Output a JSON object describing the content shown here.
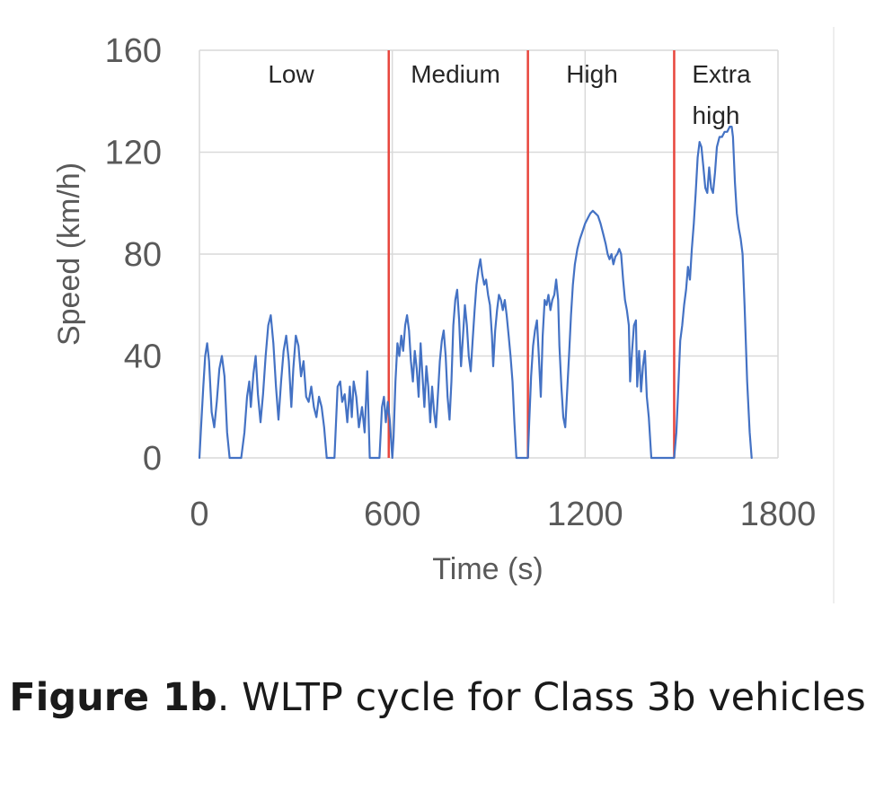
{
  "chart_data": {
    "type": "line",
    "title": "",
    "xlabel": "Time (s)",
    "ylabel": "Speed (km/h)",
    "xlim": [
      0,
      1800
    ],
    "ylim": [
      0,
      160
    ],
    "x_ticks": [
      "0",
      "600",
      "1200",
      "1800"
    ],
    "y_ticks": [
      "0",
      "40",
      "80",
      "120",
      "160"
    ],
    "grid": true,
    "colors": {
      "series": "#4472c4",
      "phase_divider": "#e8453c",
      "grid": "#d9d9d9"
    },
    "phase_boundaries": [
      589,
      1022,
      1477
    ],
    "phases": [
      "Low",
      "Medium",
      "High",
      "Extra",
      "high"
    ],
    "series": [
      {
        "name": "Speed",
        "points": [
          [
            0,
            0
          ],
          [
            5,
            12
          ],
          [
            12,
            28
          ],
          [
            18,
            40
          ],
          [
            24,
            45
          ],
          [
            30,
            38
          ],
          [
            38,
            18
          ],
          [
            46,
            12
          ],
          [
            54,
            22
          ],
          [
            62,
            35
          ],
          [
            70,
            40
          ],
          [
            78,
            32
          ],
          [
            86,
            10
          ],
          [
            94,
            0
          ],
          [
            130,
            0
          ],
          [
            140,
            10
          ],
          [
            148,
            24
          ],
          [
            155,
            30
          ],
          [
            160,
            20
          ],
          [
            168,
            33
          ],
          [
            175,
            40
          ],
          [
            182,
            25
          ],
          [
            190,
            14
          ],
          [
            198,
            25
          ],
          [
            206,
            40
          ],
          [
            214,
            52
          ],
          [
            222,
            56
          ],
          [
            230,
            45
          ],
          [
            238,
            28
          ],
          [
            246,
            15
          ],
          [
            254,
            30
          ],
          [
            262,
            42
          ],
          [
            270,
            48
          ],
          [
            278,
            38
          ],
          [
            286,
            20
          ],
          [
            292,
            35
          ],
          [
            300,
            48
          ],
          [
            308,
            44
          ],
          [
            316,
            32
          ],
          [
            324,
            38
          ],
          [
            332,
            24
          ],
          [
            340,
            22
          ],
          [
            348,
            28
          ],
          [
            356,
            20
          ],
          [
            364,
            16
          ],
          [
            372,
            24
          ],
          [
            380,
            20
          ],
          [
            388,
            12
          ],
          [
            396,
            0
          ],
          [
            420,
            0
          ],
          [
            430,
            28
          ],
          [
            438,
            30
          ],
          [
            444,
            22
          ],
          [
            452,
            25
          ],
          [
            460,
            14
          ],
          [
            468,
            28
          ],
          [
            474,
            16
          ],
          [
            480,
            30
          ],
          [
            488,
            24
          ],
          [
            496,
            12
          ],
          [
            506,
            20
          ],
          [
            514,
            10
          ],
          [
            522,
            34
          ],
          [
            530,
            0
          ],
          [
            560,
            0
          ],
          [
            568,
            20
          ],
          [
            574,
            24
          ],
          [
            580,
            14
          ],
          [
            586,
            22
          ],
          [
            592,
            15
          ],
          [
            600,
            0
          ],
          [
            604,
            8
          ],
          [
            610,
            30
          ],
          [
            616,
            45
          ],
          [
            622,
            40
          ],
          [
            628,
            48
          ],
          [
            634,
            42
          ],
          [
            640,
            52
          ],
          [
            646,
            56
          ],
          [
            652,
            50
          ],
          [
            658,
            38
          ],
          [
            664,
            30
          ],
          [
            670,
            42
          ],
          [
            676,
            35
          ],
          [
            682,
            24
          ],
          [
            688,
            45
          ],
          [
            694,
            32
          ],
          [
            700,
            20
          ],
          [
            706,
            36
          ],
          [
            712,
            28
          ],
          [
            718,
            14
          ],
          [
            724,
            28
          ],
          [
            730,
            18
          ],
          [
            736,
            12
          ],
          [
            742,
            25
          ],
          [
            748,
            38
          ],
          [
            754,
            46
          ],
          [
            760,
            50
          ],
          [
            766,
            40
          ],
          [
            772,
            24
          ],
          [
            778,
            15
          ],
          [
            784,
            30
          ],
          [
            790,
            52
          ],
          [
            796,
            62
          ],
          [
            802,
            66
          ],
          [
            808,
            54
          ],
          [
            814,
            36
          ],
          [
            820,
            48
          ],
          [
            826,
            60
          ],
          [
            832,
            52
          ],
          [
            838,
            40
          ],
          [
            844,
            34
          ],
          [
            850,
            46
          ],
          [
            856,
            58
          ],
          [
            862,
            68
          ],
          [
            868,
            74
          ],
          [
            874,
            78
          ],
          [
            880,
            72
          ],
          [
            886,
            68
          ],
          [
            892,
            70
          ],
          [
            898,
            64
          ],
          [
            904,
            60
          ],
          [
            910,
            48
          ],
          [
            914,
            36
          ],
          [
            920,
            50
          ],
          [
            926,
            58
          ],
          [
            932,
            64
          ],
          [
            938,
            62
          ],
          [
            944,
            58
          ],
          [
            950,
            62
          ],
          [
            956,
            56
          ],
          [
            962,
            48
          ],
          [
            968,
            40
          ],
          [
            974,
            30
          ],
          [
            980,
            14
          ],
          [
            986,
            0
          ],
          [
            1022,
            0
          ],
          [
            1026,
            14
          ],
          [
            1032,
            32
          ],
          [
            1038,
            44
          ],
          [
            1044,
            50
          ],
          [
            1050,
            54
          ],
          [
            1056,
            40
          ],
          [
            1062,
            24
          ],
          [
            1068,
            48
          ],
          [
            1074,
            62
          ],
          [
            1080,
            60
          ],
          [
            1086,
            64
          ],
          [
            1092,
            58
          ],
          [
            1098,
            62
          ],
          [
            1104,
            64
          ],
          [
            1110,
            70
          ],
          [
            1116,
            62
          ],
          [
            1120,
            44
          ],
          [
            1126,
            28
          ],
          [
            1132,
            16
          ],
          [
            1138,
            12
          ],
          [
            1144,
            26
          ],
          [
            1150,
            40
          ],
          [
            1156,
            56
          ],
          [
            1162,
            68
          ],
          [
            1168,
            76
          ],
          [
            1176,
            82
          ],
          [
            1184,
            86
          ],
          [
            1192,
            89
          ],
          [
            1200,
            92
          ],
          [
            1208,
            94
          ],
          [
            1216,
            96
          ],
          [
            1224,
            97
          ],
          [
            1232,
            96
          ],
          [
            1240,
            95
          ],
          [
            1248,
            92
          ],
          [
            1256,
            88
          ],
          [
            1264,
            84
          ],
          [
            1270,
            80
          ],
          [
            1276,
            78
          ],
          [
            1282,
            80
          ],
          [
            1288,
            76
          ],
          [
            1294,
            79
          ],
          [
            1300,
            80
          ],
          [
            1306,
            82
          ],
          [
            1312,
            80
          ],
          [
            1318,
            70
          ],
          [
            1324,
            62
          ],
          [
            1330,
            58
          ],
          [
            1336,
            52
          ],
          [
            1340,
            30
          ],
          [
            1346,
            42
          ],
          [
            1352,
            52
          ],
          [
            1358,
            54
          ],
          [
            1362,
            28
          ],
          [
            1368,
            42
          ],
          [
            1374,
            26
          ],
          [
            1380,
            36
          ],
          [
            1386,
            42
          ],
          [
            1392,
            24
          ],
          [
            1398,
            16
          ],
          [
            1406,
            0
          ],
          [
            1477,
            0
          ],
          [
            1484,
            10
          ],
          [
            1490,
            28
          ],
          [
            1496,
            46
          ],
          [
            1502,
            52
          ],
          [
            1508,
            60
          ],
          [
            1514,
            66
          ],
          [
            1520,
            75
          ],
          [
            1526,
            70
          ],
          [
            1532,
            82
          ],
          [
            1538,
            92
          ],
          [
            1544,
            104
          ],
          [
            1550,
            118
          ],
          [
            1556,
            124
          ],
          [
            1562,
            122
          ],
          [
            1568,
            114
          ],
          [
            1574,
            106
          ],
          [
            1580,
            104
          ],
          [
            1586,
            114
          ],
          [
            1592,
            106
          ],
          [
            1598,
            104
          ],
          [
            1604,
            112
          ],
          [
            1610,
            122
          ],
          [
            1618,
            126
          ],
          [
            1626,
            126
          ],
          [
            1634,
            128
          ],
          [
            1642,
            128
          ],
          [
            1650,
            130
          ],
          [
            1656,
            130
          ],
          [
            1660,
            126
          ],
          [
            1666,
            108
          ],
          [
            1672,
            96
          ],
          [
            1678,
            90
          ],
          [
            1684,
            86
          ],
          [
            1690,
            80
          ],
          [
            1696,
            60
          ],
          [
            1704,
            30
          ],
          [
            1712,
            10
          ],
          [
            1718,
            0
          ]
        ]
      }
    ]
  },
  "caption": {
    "bold": "Figure 1b",
    "text": ". WLTP cycle for Class 3b vehicles"
  }
}
